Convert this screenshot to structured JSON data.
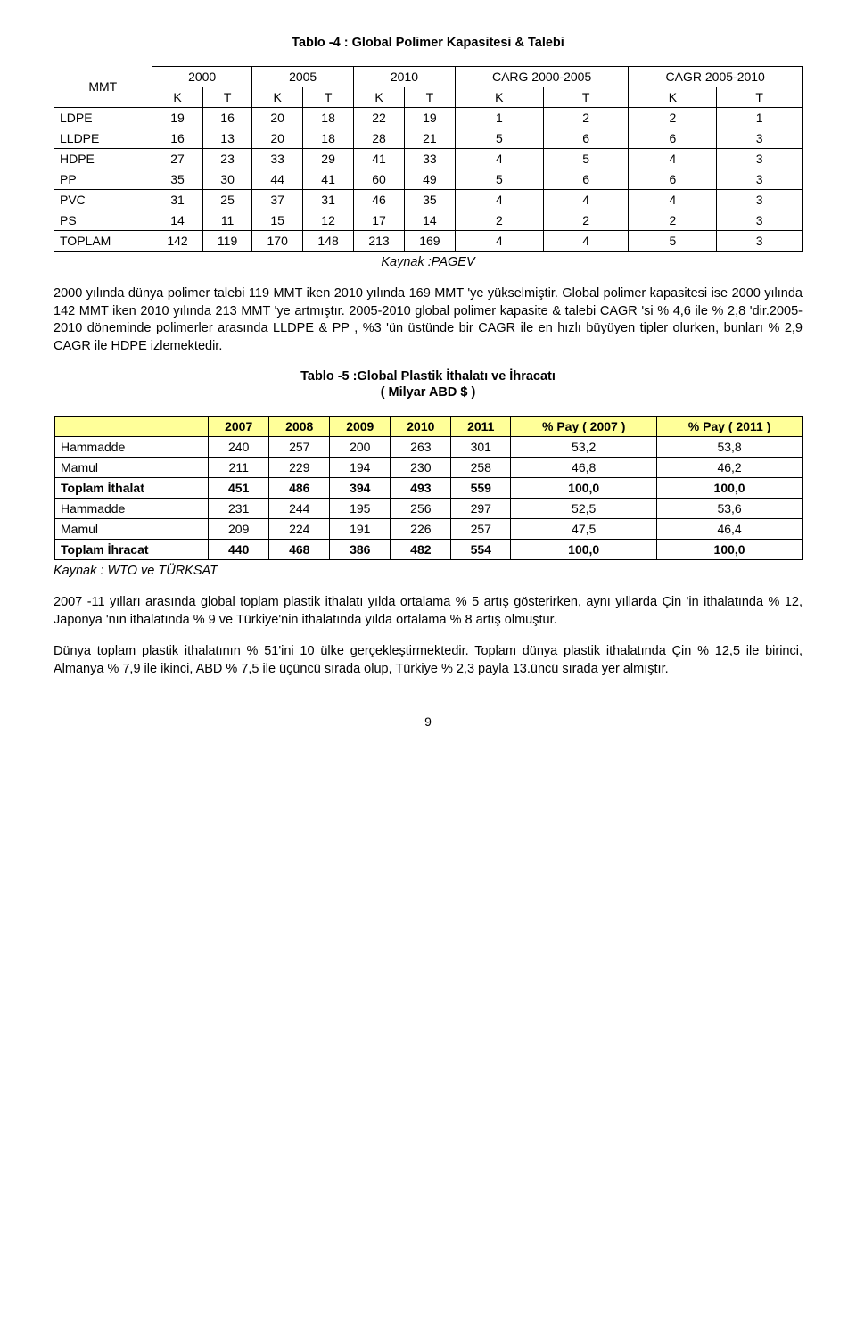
{
  "table4": {
    "title": "Tablo -4 : Global Polimer Kapasitesi & Talebi",
    "year_groups": [
      "2000",
      "2005",
      "2010",
      "CARG 2000-2005",
      "CAGR 2005-2010"
    ],
    "sub_headers": [
      "K",
      "T",
      "K",
      "T",
      "K",
      "T",
      "K",
      "T",
      "K",
      "T"
    ],
    "row_label_header": "MMT",
    "rows": [
      {
        "label": "LDPE",
        "vals": [
          "19",
          "16",
          "20",
          "18",
          "22",
          "19",
          "1",
          "2",
          "2",
          "1"
        ]
      },
      {
        "label": "LLDPE",
        "vals": [
          "16",
          "13",
          "20",
          "18",
          "28",
          "21",
          "5",
          "6",
          "6",
          "3"
        ]
      },
      {
        "label": "HDPE",
        "vals": [
          "27",
          "23",
          "33",
          "29",
          "41",
          "33",
          "4",
          "5",
          "4",
          "3"
        ]
      },
      {
        "label": "PP",
        "vals": [
          "35",
          "30",
          "44",
          "41",
          "60",
          "49",
          "5",
          "6",
          "6",
          "3"
        ]
      },
      {
        "label": "PVC",
        "vals": [
          "31",
          "25",
          "37",
          "31",
          "46",
          "35",
          "4",
          "4",
          "4",
          "3"
        ]
      },
      {
        "label": "PS",
        "vals": [
          "14",
          "11",
          "15",
          "12",
          "17",
          "14",
          "2",
          "2",
          "2",
          "3"
        ]
      },
      {
        "label": "TOPLAM",
        "vals": [
          "142",
          "119",
          "170",
          "148",
          "213",
          "169",
          "4",
          "4",
          "5",
          "3"
        ]
      }
    ],
    "source": "Kaynak :PAGEV"
  },
  "para1": "2000 yılında dünya polimer talebi 119 MMT iken 2010 yılında 169 MMT 'ye yükselmiştir. Global polimer kapasitesi ise 2000 yılında 142 MMT iken 2010 yılında 213 MMT 'ye artmıştır. 2005-2010 global polimer kapasite & talebi CAGR 'si % 4,6 ile % 2,8 'dir.2005-2010 döneminde polimerler arasında LLDPE & PP , %3 'ün üstünde bir CAGR ile en hızlı büyüyen tipler olurken, bunları % 2,9 CAGR ile HDPE izlemektedir.",
  "table5": {
    "title_line1": "Tablo -5 :Global Plastik İthalatı ve İhracatı",
    "title_line2": "( Milyar ABD $ )",
    "headers": [
      "",
      "2007",
      "2008",
      "2009",
      "2010",
      "2011",
      "% Pay ( 2007 )",
      "% Pay ( 2011 )"
    ],
    "rows": [
      {
        "label": "Hammadde",
        "vals": [
          "240",
          "257",
          "200",
          "263",
          "301",
          "53,2",
          "53,8"
        ],
        "bold": false
      },
      {
        "label": "Mamul",
        "vals": [
          "211",
          "229",
          "194",
          "230",
          "258",
          "46,8",
          "46,2"
        ],
        "bold": false
      },
      {
        "label": "Toplam İthalat",
        "vals": [
          "451",
          "486",
          "394",
          "493",
          "559",
          "100,0",
          "100,0"
        ],
        "bold": true
      },
      {
        "label": "Hammadde",
        "vals": [
          "231",
          "244",
          "195",
          "256",
          "297",
          "52,5",
          "53,6"
        ],
        "bold": false
      },
      {
        "label": "Mamul",
        "vals": [
          "209",
          "224",
          "191",
          "226",
          "257",
          "47,5",
          "46,4"
        ],
        "bold": false
      },
      {
        "label": "Toplam İhracat",
        "vals": [
          "440",
          "468",
          "386",
          "482",
          "554",
          "100,0",
          "100,0"
        ],
        "bold": true
      }
    ],
    "source": "Kaynak : WTO ve TÜRKSAT"
  },
  "para2": "2007 -11 yılları arasında global toplam plastik ithalatı yılda ortalama % 5 artış gösterirken, aynı yıllarda Çin 'in ithalatında % 12, Japonya 'nın ithalatında  % 9 ve Türkiye'nin ithalatında yılda ortalama % 8 artış olmuştur.",
  "para3": "Dünya toplam plastik ithalatının % 51'ini 10 ülke gerçekleştirmektedir. Toplam dünya plastik ithalatında Çin % 12,5 ile birinci, Almanya % 7,9 ile ikinci, ABD % 7,5 ile üçüncü sırada olup, Türkiye % 2,3 payla 13.üncü sırada yer almıştır.",
  "page_number": "9",
  "styles": {
    "yellow_header_bg": "#ffff99",
    "border_color": "#000000"
  }
}
